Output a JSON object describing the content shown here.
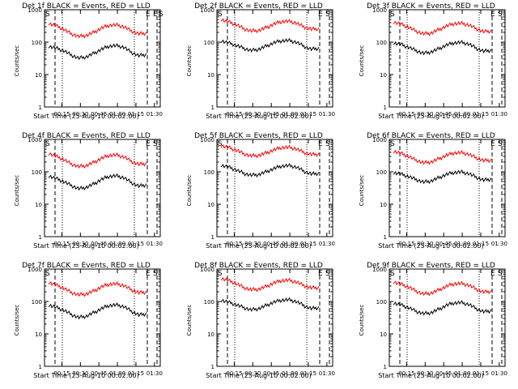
{
  "chart_data": [
    {
      "type": "line",
      "title": "Det 1f BLACK = Events, RED = LLD",
      "xlabel": "Start Time (25-Aug-10 00:02:00)",
      "ylabel": "Counts/sec",
      "x_ticks": [
        "00:15",
        "00:30",
        "00:45",
        "01:00",
        "01:15",
        "01:30"
      ],
      "y_ticks": [
        "1",
        "10",
        "100",
        "1000"
      ],
      "ylim": [
        1,
        1000
      ],
      "y_scale": "log",
      "markers": [
        "S",
        "E",
        "E",
        "S"
      ],
      "series": [
        {
          "name": "Events",
          "color": "#000000",
          "values": [
            75,
            65,
            55,
            40,
            32,
            35,
            45,
            60,
            75,
            78,
            70,
            48,
            38,
            42
          ]
        },
        {
          "name": "LLD",
          "color": "#ff0000",
          "values": [
            380,
            320,
            250,
            180,
            150,
            160,
            200,
            270,
            330,
            340,
            300,
            220,
            180,
            190
          ]
        }
      ]
    },
    {
      "type": "line",
      "title": "Det 2f BLACK = Events, RED = LLD",
      "xlabel": "Start Time (25-Aug-10 00:02:00)",
      "ylabel": "Counts/sec",
      "x_ticks": [
        "00:15",
        "00:30",
        "00:45",
        "01:00",
        "01:15",
        "01:30"
      ],
      "y_ticks": [
        "1",
        "10",
        "100",
        "1000"
      ],
      "ylim": [
        1,
        1000
      ],
      "y_scale": "log",
      "markers": [
        "S",
        "E",
        "S"
      ],
      "series": [
        {
          "name": "Events",
          "color": "#000000",
          "values": [
            110,
            95,
            80,
            65,
            55,
            60,
            75,
            95,
            110,
            112,
            100,
            75,
            60,
            65
          ]
        },
        {
          "name": "LLD",
          "color": "#ff0000",
          "values": [
            500,
            420,
            350,
            260,
            220,
            230,
            280,
            360,
            430,
            440,
            390,
            300,
            250,
            260
          ]
        }
      ]
    },
    {
      "type": "line",
      "title": "Det 3f BLACK = Events, RED = LLD",
      "xlabel": "Start Time (25-Aug-10 00:02:00)",
      "ylabel": "Counts/sec",
      "x_ticks": [
        "00:15",
        "00:30",
        "00:45",
        "01:00",
        "01:15",
        "01:30"
      ],
      "y_ticks": [
        "1",
        "10",
        "100",
        "1000"
      ],
      "ylim": [
        1,
        1000
      ],
      "y_scale": "log",
      "markers": [
        "S",
        "E",
        "S"
      ],
      "series": [
        {
          "name": "Events",
          "color": "#000000",
          "values": [
            95,
            85,
            70,
            55,
            45,
            50,
            62,
            80,
            95,
            98,
            88,
            65,
            52,
            56
          ]
        },
        {
          "name": "LLD",
          "color": "#ff0000",
          "values": [
            420,
            360,
            290,
            220,
            180,
            190,
            240,
            310,
            370,
            380,
            340,
            260,
            210,
            220
          ]
        }
      ]
    },
    {
      "type": "line",
      "title": "Det 4f BLACK = Events, RED = LLD",
      "xlabel": "Start Time (25-Aug-10 00:02:00)",
      "ylabel": "Counts/sec",
      "x_ticks": [
        "00:15",
        "00:30",
        "00:45",
        "01:00",
        "01:15",
        "01:30"
      ],
      "y_ticks": [
        "1",
        "10",
        "100",
        "1000"
      ],
      "ylim": [
        1,
        1000
      ],
      "y_scale": "log",
      "markers": [
        "S",
        "E",
        "S"
      ],
      "series": [
        {
          "name": "Events",
          "color": "#000000",
          "values": [
            75,
            62,
            50,
            38,
            30,
            33,
            42,
            58,
            72,
            75,
            66,
            46,
            36,
            40
          ]
        },
        {
          "name": "LLD",
          "color": "#ff0000",
          "values": [
            370,
            300,
            240,
            175,
            145,
            155,
            195,
            260,
            320,
            330,
            290,
            210,
            170,
            180
          ]
        }
      ]
    },
    {
      "type": "line",
      "title": "Det 5f BLACK = Events, RED = LLD",
      "xlabel": "Start Time (25-Aug-10 00:02:00)",
      "ylabel": "Counts/sec",
      "x_ticks": [
        "00:15",
        "00:30",
        "00:45",
        "01:00",
        "01:15",
        "01:30"
      ],
      "y_ticks": [
        "1",
        "10",
        "100",
        "1000"
      ],
      "ylim": [
        1,
        1000
      ],
      "y_scale": "log",
      "markers": [
        "S",
        "E",
        "S"
      ],
      "series": [
        {
          "name": "Events",
          "color": "#000000",
          "values": [
            160,
            140,
            115,
            90,
            78,
            82,
            100,
            125,
            150,
            155,
            140,
            105,
            85,
            90
          ]
        },
        {
          "name": "LLD",
          "color": "#ff0000",
          "values": [
            650,
            560,
            470,
            360,
            310,
            320,
            380,
            470,
            560,
            570,
            510,
            400,
            340,
            350
          ]
        }
      ]
    },
    {
      "type": "line",
      "title": "Det 6f BLACK = Events, RED = LLD",
      "xlabel": "Start Time (25-Aug-10 00:02:00)",
      "ylabel": "Counts/sec",
      "x_ticks": [
        "00:15",
        "00:30",
        "00:45",
        "01:00",
        "01:15",
        "01:30"
      ],
      "y_ticks": [
        "1",
        "10",
        "100",
        "1000"
      ],
      "ylim": [
        1,
        1000
      ],
      "y_scale": "log",
      "markers": [
        "S",
        "E",
        "S"
      ],
      "series": [
        {
          "name": "Events",
          "color": "#000000",
          "values": [
            95,
            85,
            72,
            58,
            48,
            52,
            65,
            82,
            95,
            98,
            88,
            68,
            55,
            60
          ]
        },
        {
          "name": "LLD",
          "color": "#ff0000",
          "values": [
            430,
            370,
            300,
            230,
            190,
            200,
            250,
            320,
            380,
            390,
            350,
            270,
            220,
            230
          ]
        }
      ]
    },
    {
      "type": "line",
      "title": "Det 7f BLACK = Events, RED = LLD",
      "xlabel": "Start Time (25-Aug-10 00:02:00)",
      "ylabel": "Counts/sec",
      "x_ticks": [
        "00:15",
        "00:30",
        "00:45",
        "01:00",
        "01:15",
        "01:30"
      ],
      "y_ticks": [
        "1",
        "10",
        "100",
        "1000"
      ],
      "ylim": [
        1,
        1000
      ],
      "y_scale": "log",
      "markers": [
        "S",
        "E",
        "S"
      ],
      "series": [
        {
          "name": "Events",
          "color": "#000000",
          "values": [
            78,
            66,
            54,
            40,
            32,
            35,
            45,
            60,
            75,
            78,
            70,
            50,
            38,
            42
          ]
        },
        {
          "name": "LLD",
          "color": "#ff0000",
          "values": [
            390,
            320,
            260,
            190,
            160,
            170,
            210,
            280,
            340,
            350,
            310,
            230,
            185,
            195
          ]
        }
      ]
    },
    {
      "type": "line",
      "title": "Det 8f BLACK = Events, RED = LLD",
      "xlabel": "Start Time (25-Aug-10 00:02:00)",
      "ylabel": "Counts/sec",
      "x_ticks": [
        "00:15",
        "00:30",
        "00:45",
        "01:00",
        "01:15",
        "01:30"
      ],
      "y_ticks": [
        "1",
        "10",
        "100",
        "1000"
      ],
      "ylim": [
        1,
        1000
      ],
      "y_scale": "log",
      "markers": [
        "S",
        "E",
        "S"
      ],
      "series": [
        {
          "name": "Events",
          "color": "#000000",
          "values": [
            110,
            95,
            80,
            65,
            55,
            60,
            75,
            95,
            110,
            112,
            100,
            75,
            60,
            65
          ]
        },
        {
          "name": "LLD",
          "color": "#ff0000",
          "values": [
            520,
            440,
            360,
            270,
            230,
            240,
            290,
            370,
            440,
            450,
            400,
            310,
            260,
            270
          ]
        }
      ]
    },
    {
      "type": "line",
      "title": "Det 9f BLACK = Events, RED = LLD",
      "xlabel": "Start Time (25-Aug-10 00:02:00)",
      "ylabel": "Counts/sec",
      "x_ticks": [
        "00:15",
        "00:30",
        "00:45",
        "01:00",
        "01:15",
        "01:30"
      ],
      "y_ticks": [
        "1",
        "10",
        "100",
        "1000"
      ],
      "ylim": [
        1,
        1000
      ],
      "y_scale": "log",
      "markers": [
        "S",
        "E",
        "S"
      ],
      "series": [
        {
          "name": "Events",
          "color": "#000000",
          "values": [
            90,
            78,
            65,
            50,
            42,
            45,
            57,
            75,
            90,
            92,
            82,
            60,
            48,
            52
          ]
        },
        {
          "name": "LLD",
          "color": "#ff0000",
          "values": [
            400,
            340,
            280,
            210,
            170,
            180,
            225,
            290,
            350,
            360,
            320,
            240,
            195,
            205
          ]
        }
      ]
    }
  ]
}
